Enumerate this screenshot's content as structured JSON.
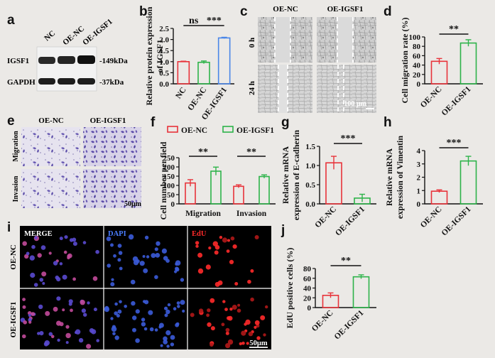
{
  "colors": {
    "red": "#e8333a",
    "green": "#2db34a",
    "blue": "#4a86e8",
    "bg": "#ebe9e6"
  },
  "panel_a": {
    "letter": "a",
    "lanes": [
      "NC",
      "OE-NC",
      "OE-IGSF1"
    ],
    "bands": [
      "IGSF1",
      "GAPDH"
    ],
    "sizes": [
      "-149kDa",
      "-37kDa"
    ]
  },
  "panel_c": {
    "letter": "c",
    "columns": [
      "OE-NC",
      "OE-IGSF1"
    ],
    "rows": [
      "0 h",
      "24 h"
    ],
    "scale": "100 μm"
  },
  "panel_e": {
    "letter": "e",
    "columns": [
      "OE-NC",
      "OE-IGSF1"
    ],
    "rows": [
      "Migration",
      "Invasion"
    ],
    "scale": "50μm"
  },
  "panel_i": {
    "letter": "i",
    "columns": [
      "MERGE",
      "DAPI",
      "EdU"
    ],
    "rows": [
      "OE-NC",
      "OE-IGSF1"
    ],
    "scale": "50μm"
  },
  "chart_data": [
    {
      "id": "b",
      "letter": "b",
      "type": "bar",
      "ylabel": "Relative protein expression of IGSF1",
      "categories": [
        "NC",
        "OE-NC",
        "OE-IGSF1"
      ],
      "values": [
        1.0,
        0.97,
        2.07
      ],
      "errors": [
        0.02,
        0.06,
        0.03
      ],
      "colors": [
        "#e8333a",
        "#2db34a",
        "#4a86e8"
      ],
      "ylim": [
        0,
        2.5
      ],
      "ticks": [
        "0.0",
        "0.5",
        "1.0",
        "1.5",
        "2.0",
        "2.5"
      ],
      "significance": [
        {
          "from": 0,
          "to": 1,
          "label": "ns"
        },
        {
          "from": 1,
          "to": 2,
          "label": "***"
        }
      ]
    },
    {
      "id": "d",
      "letter": "d",
      "type": "bar",
      "ylabel": "Cell migration rate (%)",
      "categories": [
        "OE-NC",
        "OE-IGSF1"
      ],
      "values": [
        48,
        87
      ],
      "errors": [
        6,
        7
      ],
      "colors": [
        "#e8333a",
        "#2db34a"
      ],
      "ylim": [
        0,
        100
      ],
      "ticks": [
        "0",
        "20",
        "40",
        "60",
        "80",
        "100"
      ],
      "significance": [
        {
          "from": 0,
          "to": 1,
          "label": "**"
        }
      ]
    },
    {
      "id": "f",
      "letter": "f",
      "type": "bar",
      "ylabel": "Cell number per field",
      "categories": [
        "Migration",
        "Invasion"
      ],
      "series": [
        {
          "name": "OE-NC",
          "color": "#e8333a",
          "values": [
            113,
            95
          ],
          "errors": [
            18,
            8
          ]
        },
        {
          "name": "OE-IGSF1",
          "color": "#2db34a",
          "values": [
            177,
            148
          ],
          "errors": [
            22,
            9
          ]
        }
      ],
      "ylim": [
        0,
        250
      ],
      "ticks": [
        "0",
        "50",
        "100",
        "150",
        "200",
        "250"
      ],
      "significance": [
        {
          "group": 0,
          "label": "**"
        },
        {
          "group": 1,
          "label": "**"
        }
      ]
    },
    {
      "id": "g",
      "letter": "g",
      "type": "bar",
      "ylabel": "Relative mRNA expression of E-cadherin",
      "categories": [
        "OE-NC",
        "OE-IGSF1"
      ],
      "values": [
        1.07,
        0.15
      ],
      "errors": [
        0.17,
        0.1
      ],
      "colors": [
        "#e8333a",
        "#2db34a"
      ],
      "ylim": [
        0,
        1.5
      ],
      "ticks": [
        "0.0",
        "0.5",
        "1.0",
        "1.5"
      ],
      "significance": [
        {
          "from": 0,
          "to": 1,
          "label": "***"
        }
      ]
    },
    {
      "id": "h",
      "letter": "h",
      "type": "bar",
      "ylabel": "Relative mRNA expression of Vimentin",
      "categories": [
        "OE-NC",
        "OE-IGSF1"
      ],
      "values": [
        0.95,
        3.22
      ],
      "errors": [
        0.1,
        0.35
      ],
      "colors": [
        "#e8333a",
        "#2db34a"
      ],
      "ylim": [
        0,
        4
      ],
      "ticks": [
        "0",
        "1",
        "2",
        "3",
        "4"
      ],
      "significance": [
        {
          "from": 0,
          "to": 1,
          "label": "***"
        }
      ]
    },
    {
      "id": "j",
      "letter": "j",
      "type": "bar",
      "ylabel": "EdU positive cells (%)",
      "categories": [
        "OE-NC",
        "OE-IGSF1"
      ],
      "values": [
        25,
        63
      ],
      "errors": [
        5,
        4
      ],
      "colors": [
        "#e8333a",
        "#2db34a"
      ],
      "ylim": [
        0,
        80
      ],
      "ticks": [
        "0",
        "20",
        "40",
        "60",
        "80"
      ],
      "significance": [
        {
          "from": 0,
          "to": 1,
          "label": "**"
        }
      ]
    }
  ]
}
